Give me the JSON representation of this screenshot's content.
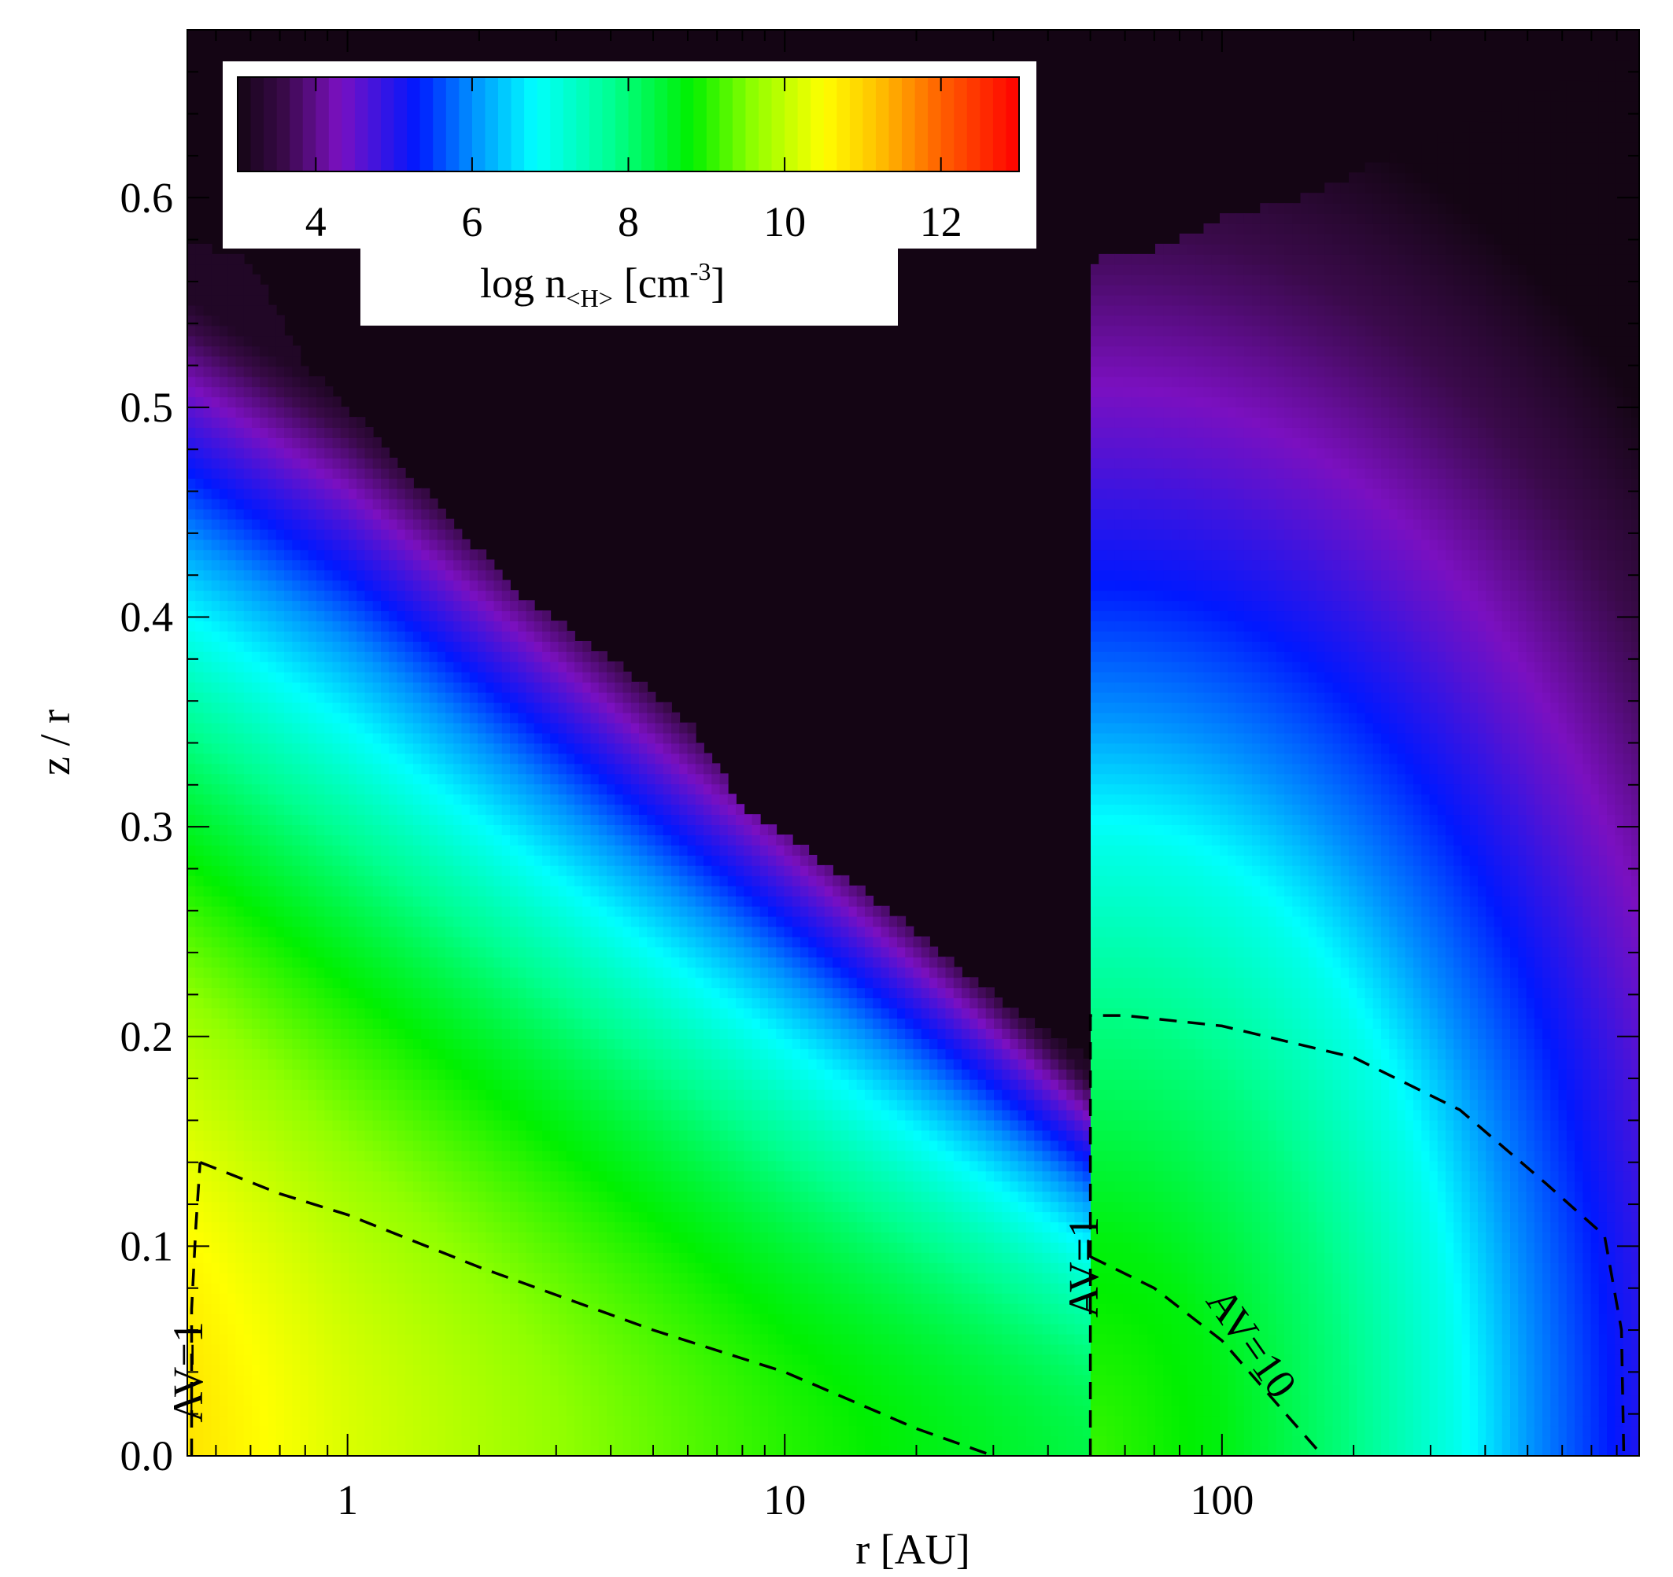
{
  "chart_data": {
    "type": "heatmap",
    "x_scale": "log",
    "xlim": [
      0.43,
      900
    ],
    "ylim": [
      0.0,
      0.68
    ],
    "xlabel": "r [AU]",
    "ylabel": "z / r",
    "x_ticks": [
      {
        "value": 1,
        "label": "1"
      },
      {
        "value": 10,
        "label": "10"
      },
      {
        "value": 100,
        "label": "100"
      }
    ],
    "y_ticks": [
      {
        "value": 0.0,
        "label": "0.0"
      },
      {
        "value": 0.1,
        "label": "0.1"
      },
      {
        "value": 0.2,
        "label": "0.2"
      },
      {
        "value": 0.3,
        "label": "0.3"
      },
      {
        "value": 0.4,
        "label": "0.4"
      },
      {
        "value": 0.5,
        "label": "0.5"
      },
      {
        "value": 0.6,
        "label": "0.6"
      }
    ],
    "colorbar": {
      "range": [
        3,
        13
      ],
      "ticks": [
        {
          "value": 4,
          "label": "4"
        },
        {
          "value": 6,
          "label": "6"
        },
        {
          "value": 8,
          "label": "8"
        },
        {
          "value": 10,
          "label": "10"
        },
        {
          "value": 12,
          "label": "12"
        }
      ],
      "label_main": "log n",
      "label_sub": "<H>",
      "label_unit_open": "[cm",
      "label_exp": "-3",
      "label_unit_close": "]",
      "stops": [
        {
          "v": 3.0,
          "c": "#140514"
        },
        {
          "v": 3.6,
          "c": "#3a0a4a"
        },
        {
          "v": 4.3,
          "c": "#7b10c0"
        },
        {
          "v": 5.3,
          "c": "#0018ff"
        },
        {
          "v": 6.0,
          "c": "#0090ff"
        },
        {
          "v": 6.8,
          "c": "#00ffff"
        },
        {
          "v": 7.8,
          "c": "#00ff90"
        },
        {
          "v": 8.8,
          "c": "#00f000"
        },
        {
          "v": 9.6,
          "c": "#90ff00"
        },
        {
          "v": 10.5,
          "c": "#ffff00"
        },
        {
          "v": 11.2,
          "c": "#ffc000"
        },
        {
          "v": 12.0,
          "c": "#ff6000"
        },
        {
          "v": 13.0,
          "c": "#ff0000"
        }
      ]
    },
    "inner_disk": {
      "r_range": [
        0.43,
        50
      ],
      "profile": [
        {
          "r": 0.43,
          "log_n_midplane": 10.8,
          "h_over_r": 0.18,
          "z_blue_over_r": 0.47
        },
        {
          "r": 1,
          "log_n_midplane": 10.2,
          "h_over_r": 0.165,
          "z_blue_over_r": 0.42
        },
        {
          "r": 10,
          "log_n_midplane": 9.0,
          "h_over_r": 0.1,
          "z_blue_over_r": 0.255
        },
        {
          "r": 50,
          "log_n_midplane": 8.3,
          "h_over_r": 0.065,
          "z_blue_over_r": 0.14
        }
      ],
      "edge_top": [
        {
          "r": 0.43,
          "z": 0.58
        },
        {
          "r": 0.6,
          "z": 0.57
        },
        {
          "r": 0.8,
          "z": 0.52
        },
        {
          "r": 1.0,
          "z": 0.5
        },
        {
          "r": 1.5,
          "z": 0.46
        },
        {
          "r": 2.5,
          "z": 0.41
        },
        {
          "r": 4.0,
          "z": 0.38
        },
        {
          "r": 6.0,
          "z": 0.35
        },
        {
          "r": 8.0,
          "z": 0.31
        },
        {
          "r": 15.0,
          "z": 0.27
        },
        {
          "r": 30.0,
          "z": 0.22
        },
        {
          "r": 50.0,
          "z": 0.19
        }
      ]
    },
    "outer_envelope": {
      "r_range": [
        50,
        900
      ],
      "rho_scale_log": [
        1.7,
        2.95
      ],
      "density_levels": [
        {
          "rho": 0.0,
          "log_n": 9.1
        },
        {
          "rho": 0.25,
          "log_n": 8.7
        },
        {
          "rho": 0.5,
          "log_n": 7.9
        },
        {
          "rho": 0.7,
          "log_n": 7.0
        },
        {
          "rho": 0.85,
          "log_n": 6.0
        },
        {
          "rho": 1.0,
          "log_n": 5.3
        },
        {
          "rho": 1.15,
          "log_n": 4.6
        },
        {
          "rho": 1.35,
          "log_n": 3.8
        },
        {
          "rho": 1.6,
          "log_n": 3.0
        }
      ],
      "edge_top": [
        {
          "r": 50,
          "z": 0.57
        },
        {
          "r": 70,
          "z": 0.575
        },
        {
          "r": 100,
          "z": 0.59
        },
        {
          "r": 150,
          "z": 0.6
        },
        {
          "r": 250,
          "z": 0.62
        },
        {
          "r": 400,
          "z": 0.64
        },
        {
          "r": 700,
          "z": 0.66
        },
        {
          "r": 900,
          "z": 0.67
        }
      ]
    },
    "contours": [
      {
        "label": "AV=1",
        "points": [
          {
            "r": 0.46,
            "z": 0.14
          },
          {
            "r": 0.7,
            "z": 0.125
          },
          {
            "r": 1.0,
            "z": 0.115
          },
          {
            "r": 2.0,
            "z": 0.09
          },
          {
            "r": 5.0,
            "z": 0.06
          },
          {
            "r": 10.0,
            "z": 0.04
          },
          {
            "r": 20.0,
            "z": 0.013
          },
          {
            "r": 30.0,
            "z": 0.0
          }
        ]
      },
      {
        "label": "AV=1",
        "points": [
          {
            "r": 0.44,
            "z": 0.0
          },
          {
            "r": 0.44,
            "z": 0.07
          },
          {
            "r": 0.45,
            "z": 0.11
          },
          {
            "r": 0.46,
            "z": 0.14
          }
        ]
      },
      {
        "label": "AV=1",
        "points": [
          {
            "r": 50,
            "z": 0.0
          },
          {
            "r": 50,
            "z": 0.1
          },
          {
            "r": 50,
            "z": 0.21
          },
          {
            "r": 60,
            "z": 0.21
          },
          {
            "r": 100,
            "z": 0.205
          },
          {
            "r": 200,
            "z": 0.19
          },
          {
            "r": 350,
            "z": 0.165
          },
          {
            "r": 550,
            "z": 0.13
          },
          {
            "r": 750,
            "z": 0.105
          },
          {
            "r": 820,
            "z": 0.06
          },
          {
            "r": 830,
            "z": 0.0
          }
        ]
      },
      {
        "label": "AV=10",
        "points": [
          {
            "r": 50,
            "z": 0.095
          },
          {
            "r": 70,
            "z": 0.08
          },
          {
            "r": 100,
            "z": 0.055
          },
          {
            "r": 140,
            "z": 0.02
          },
          {
            "r": 170,
            "z": 0.0
          }
        ]
      }
    ],
    "contour_labels": [
      {
        "text": "AV=1",
        "r": 0.465,
        "z": 0.04,
        "angle": -90
      },
      {
        "text": "AV=1",
        "r": 52,
        "z": 0.09,
        "angle": -90
      },
      {
        "text": "AV=10",
        "r": 110,
        "z": 0.05,
        "angle": 55
      }
    ]
  }
}
